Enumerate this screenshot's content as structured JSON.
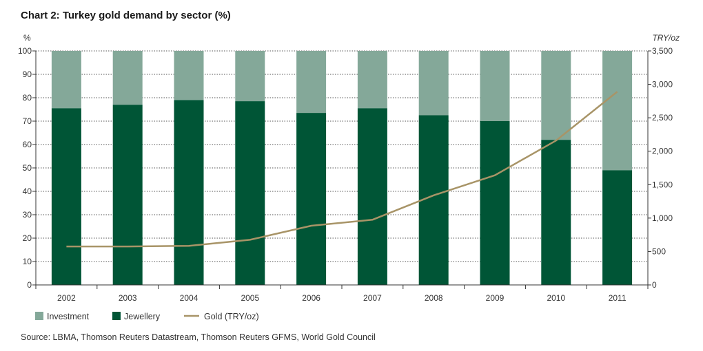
{
  "chart_data": {
    "type": "bar",
    "title": "Chart 2: Turkey gold demand by sector (%)",
    "categories": [
      "2002",
      "2003",
      "2004",
      "2005",
      "2006",
      "2007",
      "2008",
      "2009",
      "2010",
      "2011"
    ],
    "series": [
      {
        "name": "Jewellery",
        "axis": "left",
        "kind": "stacked-bar",
        "color": "#005536",
        "values": [
          75.5,
          77,
          79,
          78.5,
          73.5,
          75.5,
          72.5,
          70,
          62,
          49
        ]
      },
      {
        "name": "Investment",
        "axis": "left",
        "kind": "stacked-bar",
        "color": "#84a899",
        "values": [
          24.5,
          23,
          21,
          21.5,
          26.5,
          24.5,
          27.5,
          30,
          38,
          51
        ]
      },
      {
        "name": "Gold (TRY/oz)",
        "axis": "right",
        "kind": "line",
        "color": "#a89467",
        "values": [
          575,
          575,
          585,
          675,
          885,
          975,
          1340,
          1640,
          2160,
          2890
        ]
      }
    ],
    "left_axis": {
      "label": "%",
      "ylim": [
        0,
        100
      ],
      "ticks": [
        0,
        10,
        20,
        30,
        40,
        50,
        60,
        70,
        80,
        90,
        100
      ]
    },
    "right_axis": {
      "label": "TRY/oz",
      "ylim": [
        0,
        3500
      ],
      "ticks": [
        0,
        500,
        1000,
        1500,
        2000,
        2500,
        3000,
        3500
      ],
      "tick_labels": [
        "0",
        "500",
        "1,000",
        "1,500",
        "2,000",
        "2,500",
        "3,000",
        "3,500"
      ]
    },
    "legend": [
      "Investment",
      "Jewellery",
      "Gold (TRY/oz)"
    ],
    "legend_position": "bottom-left",
    "grid": true,
    "source": "Source: LBMA, Thomson Reuters Datastream, Thomson Reuters GFMS, World Gold Council"
  }
}
